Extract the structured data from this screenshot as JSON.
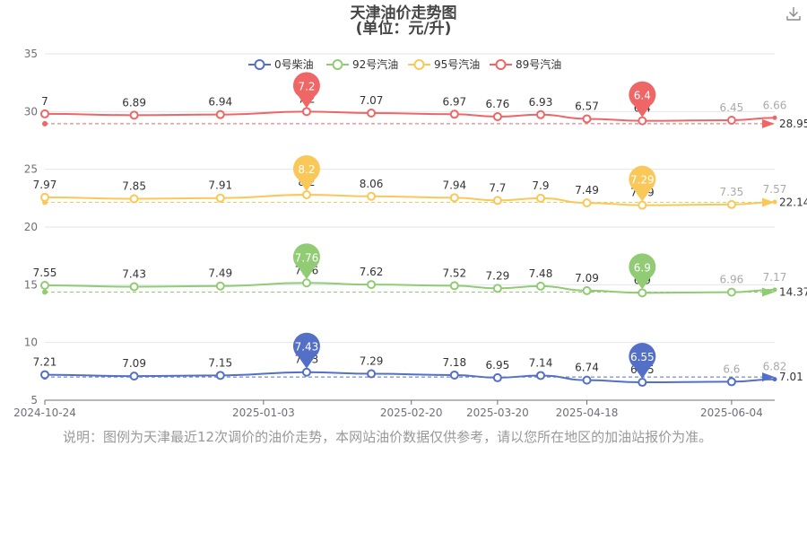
{
  "title": "天津油价走势图",
  "subtitle": "(单位：元/升)",
  "note": "说明：图例为天津最近12次调价的油价走势，本网站油价数据仅供参考，请以您所在地区的加油站报价为准。",
  "toolbar": {
    "download_icon": "download-icon"
  },
  "chart_data": {
    "type": "line",
    "x": [
      "2024-10-24",
      "2024-11-22",
      "2024-12-20",
      "2025-01-17",
      "2025-02-07",
      "2025-03-06",
      "2025-03-20",
      "2025-04-03",
      "2025-04-18",
      "2025-05-06",
      "2025-06-04",
      "2025-06-18"
    ],
    "x_ticks": [
      "2024-10-24",
      "2025-01-03",
      "2025-02-20",
      "2025-03-20",
      "2025-04-18",
      "2025-06-04"
    ],
    "ylim": [
      5,
      35
    ],
    "y_ticks": [
      5,
      10,
      15,
      20,
      25,
      30,
      35
    ],
    "grid": true,
    "legend_position": "top",
    "series": [
      {
        "name": "0号柴油",
        "color": "#5470c6",
        "values": [
          7.21,
          7.09,
          7.15,
          7.43,
          7.29,
          7.18,
          6.95,
          7.14,
          6.74,
          6.55,
          6.6,
          6.82
        ],
        "offset": 0,
        "axis_value_display": 7.01,
        "max_label": "7.43",
        "min_label": "6.55"
      },
      {
        "name": "92号汽油",
        "color": "#91cc75",
        "values": [
          7.55,
          7.43,
          7.49,
          7.76,
          7.62,
          7.52,
          7.29,
          7.48,
          7.09,
          6.9,
          6.96,
          7.17
        ],
        "offset": 7.4,
        "axis_value_display": 14.37,
        "max_label": "7.76",
        "min_label": "6.9"
      },
      {
        "name": "95号汽油",
        "color": "#fac858",
        "values": [
          7.97,
          7.85,
          7.91,
          8.2,
          8.06,
          7.94,
          7.7,
          7.9,
          7.49,
          7.29,
          7.35,
          7.57
        ],
        "offset": 14.6,
        "axis_value_display": 22.14,
        "max_label": "8.2",
        "min_label": "7.29"
      },
      {
        "name": "89号汽油",
        "color": "#ee6666",
        "values": [
          7.0,
          6.89,
          6.94,
          7.2,
          7.07,
          6.97,
          6.76,
          6.93,
          6.57,
          6.4,
          6.45,
          6.66
        ],
        "offset": 22.8,
        "axis_value_display": 28.95,
        "max_label": "7.2",
        "min_label": "6.4"
      }
    ]
  }
}
